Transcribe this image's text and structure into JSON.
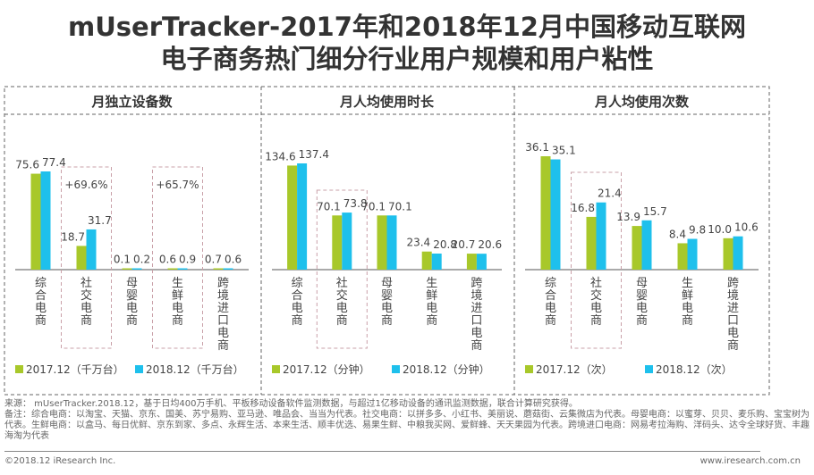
{
  "title_line1": "mUserTracker-2017年和2018年12月中国移动互联网",
  "title_line2": "电子商务热门细分行业用户规模和用户粘性",
  "colors": {
    "s2017": "#a8c82a",
    "s2018": "#1ec0ec"
  },
  "chart_data": [
    {
      "type": "bar",
      "title": "月独立设备数",
      "categories": [
        "综合电商",
        "社交电商",
        "母婴电商",
        "生鲜电商",
        "跨境进口电商"
      ],
      "series": [
        {
          "name": "2017.12（千万台）",
          "values": [
            75.6,
            18.7,
            0.1,
            0.6,
            0.7
          ]
        },
        {
          "name": "2018.12（千万台）",
          "values": [
            77.4,
            31.7,
            0.2,
            0.9,
            0.6
          ]
        }
      ],
      "highlights": [
        {
          "category": "社交电商",
          "label": "+69.6%"
        },
        {
          "category": "生鲜电商",
          "label": "+65.7%"
        }
      ],
      "legend": "bottom"
    },
    {
      "type": "bar",
      "title": "月人均使用时长",
      "categories": [
        "综合电商",
        "社交电商",
        "母婴电商",
        "生鲜电商",
        "跨境进口电商"
      ],
      "series": [
        {
          "name": "2017.12（分钟）",
          "values": [
            134.6,
            70.1,
            70.1,
            23.4,
            20.7
          ]
        },
        {
          "name": "2018.12（分钟）",
          "values": [
            137.4,
            73.8,
            70.1,
            20.8,
            20.6
          ]
        }
      ],
      "highlights": [
        {
          "category": "社交电商",
          "label": ""
        }
      ],
      "legend": "bottom"
    },
    {
      "type": "bar",
      "title": "月人均使用次数",
      "categories": [
        "综合电商",
        "社交电商",
        "母婴电商",
        "生鲜电商",
        "跨境进口电商"
      ],
      "series": [
        {
          "name": "2017.12（次）",
          "values": [
            36.1,
            16.8,
            13.9,
            8.4,
            10.0
          ]
        },
        {
          "name": "2018.12（次）",
          "values": [
            35.1,
            21.4,
            15.7,
            9.8,
            10.6
          ]
        }
      ],
      "highlights": [
        {
          "category": "社交电商",
          "label": ""
        }
      ],
      "legend": "bottom"
    }
  ],
  "notes": {
    "source": "来源： mUserTracker.2018.12，基于日均400万手机、平板移动设备软件监测数据，与超过1亿移动设备的通讯监测数据，联合计算研究获得。",
    "remark": "备注：综合电商：以淘宝、天猫、京东、国美、苏宁易购、亚马逊、唯品会、当当为代表。社交电商：以拼多多、小红书、美丽说、蘑菇街、云集微店为代表。母婴电商：以蜜芽、贝贝、麦乐购、宝宝树为代表。生鲜电商：以盒马、每日优鲜、京东到家、多点、永辉生活、本来生活、顺丰优选、易果生鲜、中粮我买网、爱鲜蜂、天天果园为代表。跨境进口电商：网易考拉海购、洋码头、达令全球好货、丰趣海淘为代表"
  },
  "footer": {
    "copyright": "©2018.12 iResearch Inc.",
    "site": "www.iresearch.com.cn"
  }
}
